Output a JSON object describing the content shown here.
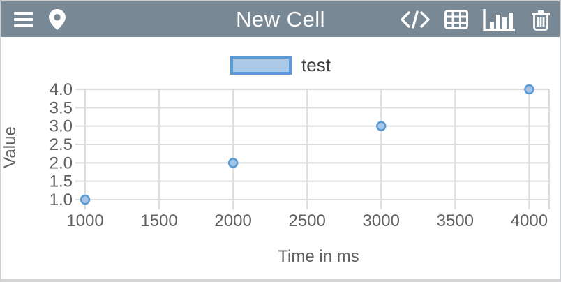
{
  "header": {
    "title": "New Cell",
    "bg_color": "#798895",
    "icon_color": "#ffffff",
    "left_icons": [
      "menu-icon",
      "location-pin-icon"
    ],
    "right_icons": [
      "code-icon",
      "table-icon",
      "bar-chart-icon",
      "trash-icon"
    ]
  },
  "legend": {
    "label": "test",
    "swatch_fill": "#ABC9E9",
    "swatch_border": "#5B9BD5",
    "position": "top-center"
  },
  "chart_data": {
    "type": "scatter",
    "title": "",
    "series": [
      {
        "name": "test",
        "points": [
          [
            1000,
            1.0
          ],
          [
            2000,
            2.0
          ],
          [
            3000,
            3.0
          ],
          [
            4000,
            4.0
          ]
        ]
      }
    ],
    "xlabel": "Time in ms",
    "ylabel": "Value",
    "xticks": [
      "1000",
      "1500",
      "2000",
      "2500",
      "3000",
      "3500",
      "4000"
    ],
    "yticks": [
      "1.0",
      "1.5",
      "2.0",
      "2.5",
      "3.0",
      "3.5",
      "4.0"
    ],
    "xlim": [
      1000,
      4135
    ],
    "ylim": [
      1.0,
      4.0
    ],
    "grid": true,
    "grid_color": "#DCDCDC",
    "tick_color": "#CFCFCF",
    "tick_text_color": "#616161",
    "marker": {
      "shape": "circle",
      "radius": 6,
      "stroke": "#5B9BD5",
      "fill": "#A6C5E6",
      "stroke_width": 2.5
    }
  }
}
